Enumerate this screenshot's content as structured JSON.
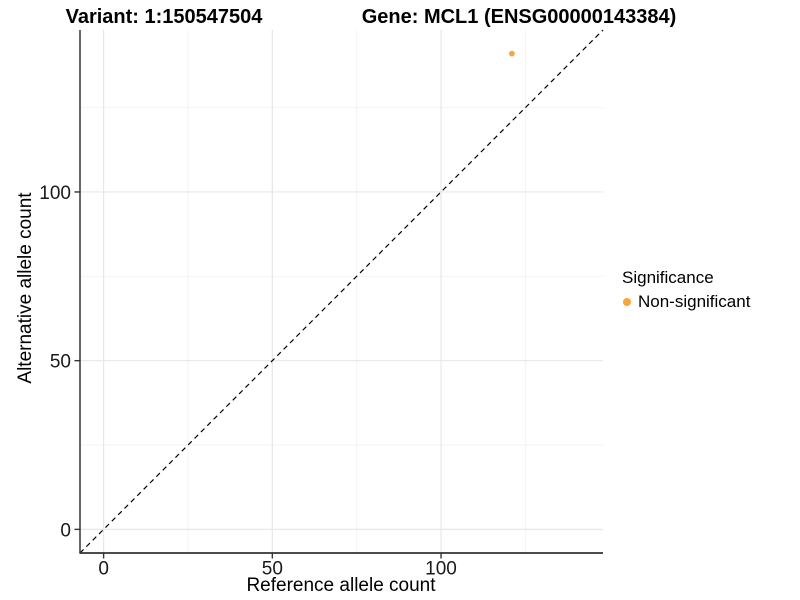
{
  "figure": {
    "titles": {
      "variant": "Variant: 1:150547504",
      "gene": "Gene: MCL1 (ENSG00000143384)"
    }
  },
  "axes": {
    "x": {
      "label": "Reference allele count",
      "tick_labels": [
        "0",
        "50",
        "100"
      ]
    },
    "y": {
      "label": "Alternative allele count",
      "tick_labels": [
        "0",
        "50",
        "100"
      ]
    }
  },
  "legend": {
    "title": "Significance",
    "items": [
      {
        "label": "Non-significant",
        "color": "#FAA43A"
      }
    ]
  },
  "colors": {
    "point": "#FAA43A",
    "axis_line": "#333333",
    "tick": "#333333",
    "tick_text": "#1a1a1a",
    "grid_major": "#e7e7e7",
    "grid_minor": "#f3f3f3",
    "reference_line": "#000000",
    "background": "#ffffff"
  },
  "chart_data": {
    "type": "scatter",
    "title": "Variant: 1:150547504 | Gene: MCL1 (ENSG00000143384)",
    "xlabel": "Reference allele count",
    "ylabel": "Alternative allele count",
    "xlim": [
      -7,
      148
    ],
    "ylim": [
      -7,
      148
    ],
    "x_ticks": [
      0,
      50,
      100
    ],
    "y_ticks": [
      0,
      50,
      100
    ],
    "x_minor_ticks": [
      25,
      75,
      125
    ],
    "y_minor_ticks": [
      25,
      75,
      125
    ],
    "grid": true,
    "legend_position": "right",
    "legend_title": "Significance",
    "reference_line": {
      "kind": "identity",
      "style": "dashed",
      "from": -7,
      "to": 148
    },
    "series": [
      {
        "name": "Non-significant",
        "color": "#FAA43A",
        "points": [
          {
            "x": 121,
            "y": 141
          }
        ]
      }
    ]
  }
}
